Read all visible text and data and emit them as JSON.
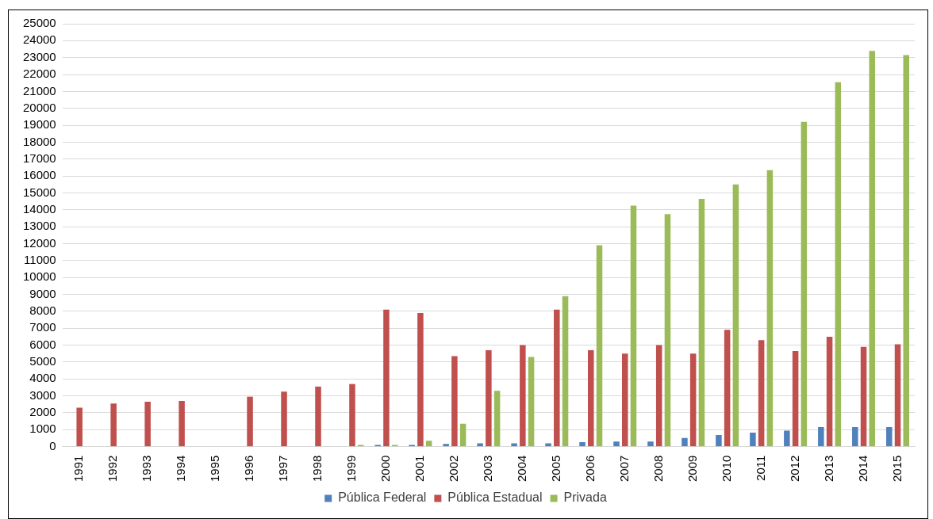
{
  "chart_data": {
    "type": "bar",
    "categories": [
      "1991",
      "1992",
      "1993",
      "1994",
      "1995",
      "1996",
      "1997",
      "1998",
      "1999",
      "2000",
      "2001",
      "2002",
      "2003",
      "2004",
      "2005",
      "2006",
      "2007",
      "2008",
      "2009",
      "2010",
      "2011",
      "2012",
      "2013",
      "2014",
      "2015"
    ],
    "series": [
      {
        "name": "Pública Federal",
        "color": "#4f81bd",
        "values": [
          0,
          0,
          0,
          0,
          0,
          0,
          0,
          0,
          0,
          100,
          100,
          160,
          190,
          190,
          190,
          260,
          300,
          300,
          510,
          680,
          830,
          940,
          1150,
          1150,
          1150
        ]
      },
      {
        "name": "Pública Estadual",
        "color": "#c0504d",
        "values": [
          2300,
          2550,
          2650,
          2700,
          0,
          2950,
          3250,
          3550,
          3700,
          8100,
          7900,
          5350,
          5700,
          6000,
          8100,
          5700,
          5500,
          6000,
          5500,
          6900,
          6300,
          5650,
          6500,
          5900,
          6050
        ]
      },
      {
        "name": "Privada",
        "color": "#9bbb59",
        "values": [
          0,
          0,
          0,
          0,
          0,
          0,
          0,
          0,
          100,
          100,
          350,
          1350,
          3300,
          5300,
          8900,
          11900,
          14250,
          13750,
          14650,
          15500,
          16350,
          19200,
          21550,
          23400,
          23150
        ]
      }
    ],
    "ylim": [
      0,
      25000
    ],
    "yticks": [
      0,
      1000,
      2000,
      3000,
      4000,
      5000,
      6000,
      7000,
      8000,
      9000,
      10000,
      11000,
      12000,
      13000,
      14000,
      15000,
      16000,
      17000,
      18000,
      19000,
      20000,
      21000,
      22000,
      23000,
      24000,
      25000
    ],
    "grid": "y",
    "legend": "bottom"
  }
}
